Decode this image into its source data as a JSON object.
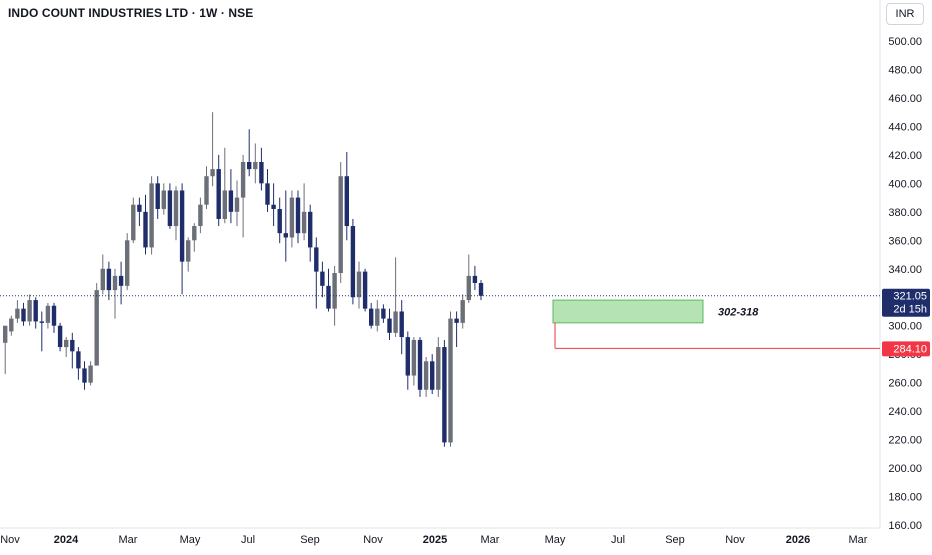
{
  "header": {
    "title": "INDO COUNT INDUSTRIES LTD · 1W · NSE",
    "currency": "INR"
  },
  "colors": {
    "up": "#6b6f78",
    "down": "#1f2d6b",
    "zone_fill": "#b6e3b4",
    "zone_border": "#5cb85c",
    "stop_line": "#f23645",
    "price_label": "#1f2d6b",
    "stop_label": "#f23645"
  },
  "chart_data": {
    "type": "candlestick",
    "x_tick_labels": [
      "Nov",
      "2024",
      "Mar",
      "May",
      "Jul",
      "Sep",
      "Nov",
      "2025",
      "Mar",
      "May",
      "Jul",
      "Sep",
      "Nov",
      "2026",
      "Mar"
    ],
    "y_tick_labels": [
      "500.00",
      "480.00",
      "460.00",
      "440.00",
      "420.00",
      "400.00",
      "380.00",
      "360.00",
      "340.00",
      "320.00",
      "300.00",
      "280.00",
      "260.00",
      "240.00",
      "220.00",
      "200.00",
      "180.00",
      "160.00"
    ],
    "ylim": [
      160,
      500
    ],
    "last_price": {
      "value": "321.05",
      "countdown": "2d 15h"
    },
    "stop_level": {
      "value": "284.10"
    },
    "zone": {
      "low": 302,
      "high": 318,
      "label": "302-318"
    },
    "candles": [
      [
        288,
        300,
        296,
        266
      ],
      [
        296,
        305,
        307,
        293
      ],
      [
        305,
        312,
        318,
        302
      ],
      [
        312,
        303,
        316,
        300
      ],
      [
        303,
        318,
        322,
        300
      ],
      [
        318,
        303,
        320,
        298
      ],
      [
        303,
        302,
        310,
        282
      ],
      [
        302,
        314,
        316,
        298
      ],
      [
        314,
        300,
        316,
        295
      ],
      [
        300,
        285,
        302,
        282
      ],
      [
        285,
        290,
        292,
        278
      ],
      [
        290,
        282,
        295,
        270
      ],
      [
        282,
        270,
        285,
        262
      ],
      [
        270,
        260,
        275,
        255
      ],
      [
        260,
        272,
        275,
        258
      ],
      [
        272,
        325,
        330,
        272
      ],
      [
        325,
        340,
        350,
        322
      ],
      [
        340,
        325,
        345,
        318
      ],
      [
        325,
        335,
        340,
        305
      ],
      [
        335,
        328,
        345,
        315
      ],
      [
        328,
        360,
        365,
        325
      ],
      [
        360,
        385,
        390,
        358
      ],
      [
        385,
        380,
        390,
        370
      ],
      [
        380,
        355,
        392,
        350
      ],
      [
        355,
        400,
        405,
        350
      ],
      [
        400,
        382,
        405,
        375
      ],
      [
        382,
        395,
        400,
        378
      ],
      [
        395,
        370,
        400,
        368
      ],
      [
        370,
        395,
        398,
        360
      ],
      [
        395,
        345,
        400,
        322
      ],
      [
        345,
        360,
        362,
        338
      ],
      [
        360,
        370,
        372,
        352
      ],
      [
        370,
        385,
        390,
        365
      ],
      [
        385,
        405,
        412,
        382
      ],
      [
        405,
        410,
        450,
        398
      ],
      [
        410,
        375,
        420,
        370
      ],
      [
        375,
        395,
        425,
        372
      ],
      [
        395,
        380,
        410,
        372
      ],
      [
        380,
        390,
        402,
        370
      ],
      [
        390,
        415,
        420,
        362
      ],
      [
        415,
        410,
        438,
        405
      ],
      [
        410,
        415,
        428,
        400
      ],
      [
        415,
        400,
        425,
        395
      ],
      [
        400,
        385,
        410,
        380
      ],
      [
        385,
        382,
        400,
        370
      ],
      [
        382,
        365,
        390,
        358
      ],
      [
        365,
        362,
        395,
        345
      ],
      [
        362,
        390,
        395,
        355
      ],
      [
        390,
        365,
        395,
        358
      ],
      [
        365,
        380,
        400,
        360
      ],
      [
        380,
        355,
        385,
        345
      ],
      [
        355,
        338,
        362,
        312
      ],
      [
        338,
        328,
        345,
        320
      ],
      [
        328,
        312,
        340,
        310
      ],
      [
        312,
        337,
        342,
        300
      ],
      [
        337,
        405,
        415,
        330
      ],
      [
        405,
        370,
        422,
        360
      ],
      [
        370,
        320,
        375,
        315
      ],
      [
        320,
        338,
        345,
        312
      ],
      [
        338,
        312,
        340,
        310
      ],
      [
        312,
        300,
        316,
        298
      ],
      [
        300,
        312,
        318,
        296
      ],
      [
        312,
        305,
        315,
        302
      ],
      [
        305,
        295,
        312,
        290
      ],
      [
        295,
        310,
        348,
        292
      ],
      [
        310,
        292,
        318,
        280
      ],
      [
        292,
        265,
        296,
        255
      ],
      [
        265,
        290,
        292,
        258
      ],
      [
        290,
        255,
        292,
        250
      ],
      [
        255,
        275,
        278,
        250
      ],
      [
        275,
        255,
        280,
        252
      ],
      [
        255,
        285,
        292,
        250
      ],
      [
        285,
        218,
        290,
        215
      ],
      [
        218,
        305,
        310,
        215
      ],
      [
        305,
        302,
        310,
        285
      ],
      [
        302,
        318,
        322,
        298
      ],
      [
        318,
        335,
        350,
        316
      ],
      [
        335,
        330,
        342,
        325
      ],
      [
        330,
        321.05,
        332,
        318
      ]
    ]
  }
}
